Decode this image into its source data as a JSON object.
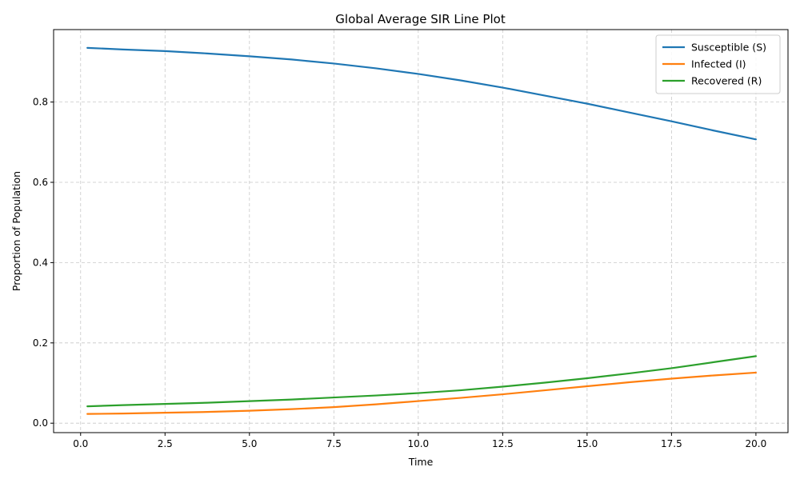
{
  "chart_data": {
    "type": "line",
    "title": "Global Average SIR Line Plot",
    "xlabel": "Time",
    "ylabel": "Proportion of Population",
    "xlim": [
      -0.8,
      20.95
    ],
    "ylim": [
      -0.0235,
      0.9805
    ],
    "x_ticks": [
      0.0,
      2.5,
      5.0,
      7.5,
      10.0,
      12.5,
      15.0,
      17.5,
      20.0
    ],
    "x_tick_labels": [
      "0.0",
      "2.5",
      "5.0",
      "7.5",
      "10.0",
      "12.5",
      "15.0",
      "17.5",
      "20.0"
    ],
    "y_ticks": [
      0.0,
      0.2,
      0.4,
      0.6,
      0.8
    ],
    "y_tick_labels": [
      "0.0",
      "0.2",
      "0.4",
      "0.6",
      "0.8"
    ],
    "grid": true,
    "legend_position": "top-right",
    "x": [
      0.2,
      1.25,
      2.5,
      3.75,
      5.0,
      6.25,
      7.5,
      8.75,
      10.0,
      11.25,
      12.5,
      13.75,
      15.0,
      16.25,
      17.5,
      18.75,
      20.0
    ],
    "series": [
      {
        "name": "Susceptible (S)",
        "color": "#1f77b4",
        "values": [
          0.935,
          0.931,
          0.927,
          0.921,
          0.914,
          0.906,
          0.896,
          0.884,
          0.87,
          0.854,
          0.836,
          0.816,
          0.796,
          0.774,
          0.752,
          0.729,
          0.707
        ]
      },
      {
        "name": "Infected (I)",
        "color": "#ff7f0e",
        "values": [
          0.023,
          0.024,
          0.026,
          0.028,
          0.031,
          0.035,
          0.04,
          0.047,
          0.055,
          0.063,
          0.072,
          0.082,
          0.092,
          0.102,
          0.111,
          0.119,
          0.126
        ]
      },
      {
        "name": "Recovered (R)",
        "color": "#2ca02c",
        "values": [
          0.042,
          0.045,
          0.048,
          0.051,
          0.055,
          0.059,
          0.064,
          0.069,
          0.075,
          0.082,
          0.091,
          0.101,
          0.112,
          0.124,
          0.137,
          0.152,
          0.167
        ]
      }
    ]
  }
}
